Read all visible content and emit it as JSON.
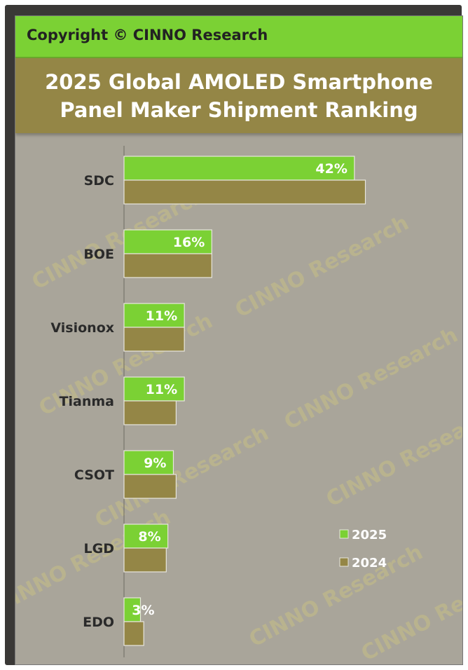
{
  "header": {
    "copyright": "Copyright © CINNO Research"
  },
  "watermark": "CINNO Research",
  "chart_data": {
    "type": "bar",
    "orientation": "horizontal",
    "title": "2025 Global AMOLED Smartphone Panel Maker Shipment Ranking",
    "title_lines": [
      "2025 Global AMOLED Smartphone",
      "Panel Maker Shipment Ranking"
    ],
    "categories": [
      "SDC",
      "BOE",
      "Visionox",
      "Tianma",
      "CSOT",
      "LGD",
      "EDO"
    ],
    "series": [
      {
        "name": "2025",
        "color": "#7bd134",
        "values": [
          42,
          16,
          11,
          11,
          9,
          8,
          3
        ],
        "labels": [
          "42%",
          "16%",
          "11%",
          "11%",
          "9%",
          "8%",
          "3%"
        ]
      },
      {
        "name": "2024",
        "color": "#948646",
        "values": [
          44,
          16,
          11,
          9.5,
          9.5,
          7.7,
          3.6
        ]
      }
    ],
    "legend": "right-lower",
    "grid": false,
    "xlim": [
      0,
      50
    ]
  }
}
